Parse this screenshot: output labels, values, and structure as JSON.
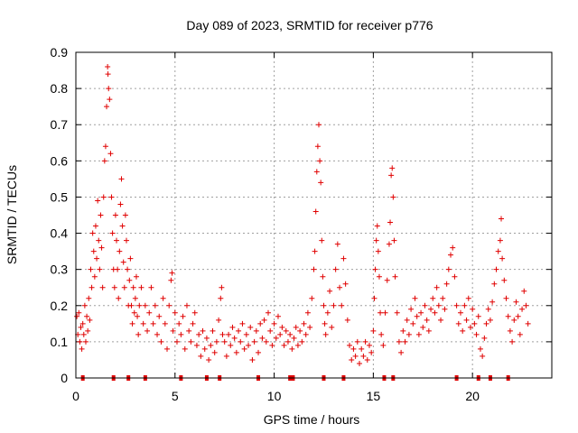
{
  "chart_data": {
    "type": "scatter",
    "title": "Day 089 of 2023, SRMTID for receiver p776",
    "xlabel": "GPS time / hours",
    "ylabel": "SRMTID / TECUs",
    "xlim": [
      0,
      24
    ],
    "ylim": [
      0,
      0.9
    ],
    "x_ticks": [
      "0",
      "5",
      "10",
      "15",
      "20"
    ],
    "y_ticks": [
      "0",
      "0.1",
      "0.2",
      "0.3",
      "0.4",
      "0.5",
      "0.6",
      "0.7",
      "0.8",
      "0.9"
    ],
    "grid": true,
    "marker": "+",
    "color": "#e00000",
    "series": [
      {
        "name": "SRMTID",
        "points": [
          [
            0.05,
            0.17
          ],
          [
            0.1,
            0.12
          ],
          [
            0.15,
            0.18
          ],
          [
            0.2,
            0.1
          ],
          [
            0.25,
            0.14
          ],
          [
            0.3,
            0.08
          ],
          [
            0.35,
            0.15
          ],
          [
            0.4,
            0.12
          ],
          [
            0.45,
            0.2
          ],
          [
            0.5,
            0.1
          ],
          [
            0.55,
            0.17
          ],
          [
            0.6,
            0.13
          ],
          [
            0.65,
            0.22
          ],
          [
            0.7,
            0.16
          ],
          [
            0.75,
            0.3
          ],
          [
            0.8,
            0.25
          ],
          [
            0.85,
            0.4
          ],
          [
            0.9,
            0.35
          ],
          [
            0.95,
            0.28
          ],
          [
            1.0,
            0.42
          ],
          [
            1.05,
            0.33
          ],
          [
            1.1,
            0.49
          ],
          [
            1.15,
            0.38
          ],
          [
            1.2,
            0.3
          ],
          [
            1.25,
            0.45
          ],
          [
            1.3,
            0.36
          ],
          [
            1.35,
            0.25
          ],
          [
            1.4,
            0.5
          ],
          [
            1.45,
            0.6
          ],
          [
            1.5,
            0.64
          ],
          [
            1.55,
            0.75
          ],
          [
            1.6,
            0.86
          ],
          [
            1.62,
            0.84
          ],
          [
            1.65,
            0.8
          ],
          [
            1.7,
            0.77
          ],
          [
            1.75,
            0.62
          ],
          [
            1.8,
            0.5
          ],
          [
            1.85,
            0.4
          ],
          [
            1.9,
            0.3
          ],
          [
            1.95,
            0.25
          ],
          [
            2.0,
            0.45
          ],
          [
            2.05,
            0.38
          ],
          [
            2.1,
            0.3
          ],
          [
            2.15,
            0.22
          ],
          [
            2.2,
            0.35
          ],
          [
            2.25,
            0.48
          ],
          [
            2.3,
            0.55
          ],
          [
            2.35,
            0.42
          ],
          [
            2.4,
            0.32
          ],
          [
            2.45,
            0.25
          ],
          [
            2.5,
            0.45
          ],
          [
            2.55,
            0.38
          ],
          [
            2.6,
            0.3
          ],
          [
            2.65,
            0.2
          ],
          [
            2.7,
            0.27
          ],
          [
            2.75,
            0.33
          ],
          [
            2.8,
            0.2
          ],
          [
            2.85,
            0.15
          ],
          [
            2.9,
            0.25
          ],
          [
            2.95,
            0.18
          ],
          [
            3.0,
            0.22
          ],
          [
            3.05,
            0.28
          ],
          [
            3.1,
            0.17
          ],
          [
            3.15,
            0.12
          ],
          [
            3.2,
            0.2
          ],
          [
            3.3,
            0.25
          ],
          [
            3.4,
            0.15
          ],
          [
            3.5,
            0.2
          ],
          [
            3.6,
            0.13
          ],
          [
            3.7,
            0.18
          ],
          [
            3.8,
            0.25
          ],
          [
            3.9,
            0.15
          ],
          [
            4.0,
            0.2
          ],
          [
            4.1,
            0.12
          ],
          [
            4.2,
            0.17
          ],
          [
            4.3,
            0.1
          ],
          [
            4.4,
            0.22
          ],
          [
            4.5,
            0.15
          ],
          [
            4.6,
            0.08
          ],
          [
            4.7,
            0.2
          ],
          [
            4.8,
            0.27
          ],
          [
            4.85,
            0.29
          ],
          [
            4.9,
            0.13
          ],
          [
            5.0,
            0.18
          ],
          [
            5.1,
            0.1
          ],
          [
            5.2,
            0.15
          ],
          [
            5.3,
            0.12
          ],
          [
            5.4,
            0.17
          ],
          [
            5.5,
            0.08
          ],
          [
            5.6,
            0.2
          ],
          [
            5.7,
            0.13
          ],
          [
            5.8,
            0.1
          ],
          [
            5.9,
            0.15
          ],
          [
            6.0,
            0.18
          ],
          [
            6.1,
            0.09
          ],
          [
            6.2,
            0.12
          ],
          [
            6.3,
            0.06
          ],
          [
            6.4,
            0.13
          ],
          [
            6.5,
            0.08
          ],
          [
            6.6,
            0.11
          ],
          [
            6.7,
            0.05
          ],
          [
            6.8,
            0.09
          ],
          [
            6.9,
            0.13
          ],
          [
            7.0,
            0.07
          ],
          [
            7.1,
            0.1
          ],
          [
            7.2,
            0.16
          ],
          [
            7.3,
            0.22
          ],
          [
            7.35,
            0.25
          ],
          [
            7.4,
            0.12
          ],
          [
            7.5,
            0.1
          ],
          [
            7.6,
            0.06
          ],
          [
            7.7,
            0.12
          ],
          [
            7.8,
            0.09
          ],
          [
            7.9,
            0.14
          ],
          [
            8.0,
            0.11
          ],
          [
            8.1,
            0.07
          ],
          [
            8.2,
            0.13
          ],
          [
            8.3,
            0.1
          ],
          [
            8.4,
            0.15
          ],
          [
            8.5,
            0.08
          ],
          [
            8.6,
            0.12
          ],
          [
            8.7,
            0.09
          ],
          [
            8.8,
            0.14
          ],
          [
            8.9,
            0.05
          ],
          [
            9.0,
            0.1
          ],
          [
            9.1,
            0.13
          ],
          [
            9.2,
            0.07
          ],
          [
            9.3,
            0.15
          ],
          [
            9.4,
            0.11
          ],
          [
            9.5,
            0.16
          ],
          [
            9.6,
            0.1
          ],
          [
            9.7,
            0.18
          ],
          [
            9.8,
            0.13
          ],
          [
            9.9,
            0.09
          ],
          [
            10.0,
            0.15
          ],
          [
            10.1,
            0.11
          ],
          [
            10.2,
            0.17
          ],
          [
            10.3,
            0.12
          ],
          [
            10.4,
            0.14
          ],
          [
            10.5,
            0.09
          ],
          [
            10.6,
            0.13
          ],
          [
            10.7,
            0.1
          ],
          [
            10.8,
            0.12
          ],
          [
            10.9,
            0.08
          ],
          [
            11.0,
            0.11
          ],
          [
            11.1,
            0.14
          ],
          [
            11.2,
            0.09
          ],
          [
            11.3,
            0.13
          ],
          [
            11.4,
            0.1
          ],
          [
            11.5,
            0.15
          ],
          [
            11.6,
            0.12
          ],
          [
            11.7,
            0.18
          ],
          [
            11.8,
            0.14
          ],
          [
            11.9,
            0.22
          ],
          [
            12.0,
            0.3
          ],
          [
            12.05,
            0.35
          ],
          [
            12.1,
            0.46
          ],
          [
            12.15,
            0.57
          ],
          [
            12.2,
            0.64
          ],
          [
            12.25,
            0.7
          ],
          [
            12.3,
            0.6
          ],
          [
            12.35,
            0.54
          ],
          [
            12.4,
            0.38
          ],
          [
            12.45,
            0.28
          ],
          [
            12.5,
            0.2
          ],
          [
            12.55,
            0.15
          ],
          [
            12.6,
            0.12
          ],
          [
            12.7,
            0.18
          ],
          [
            12.8,
            0.24
          ],
          [
            12.9,
            0.14
          ],
          [
            13.0,
            0.2
          ],
          [
            13.1,
            0.3
          ],
          [
            13.2,
            0.37
          ],
          [
            13.3,
            0.25
          ],
          [
            13.4,
            0.2
          ],
          [
            13.5,
            0.33
          ],
          [
            13.6,
            0.26
          ],
          [
            13.7,
            0.16
          ],
          [
            13.8,
            0.09
          ],
          [
            13.9,
            0.05
          ],
          [
            14.0,
            0.08
          ],
          [
            14.1,
            0.06
          ],
          [
            14.2,
            0.1
          ],
          [
            14.3,
            0.04
          ],
          [
            14.4,
            0.08
          ],
          [
            14.5,
            0.06
          ],
          [
            14.6,
            0.1
          ],
          [
            14.7,
            0.05
          ],
          [
            14.8,
            0.09
          ],
          [
            14.9,
            0.07
          ],
          [
            15.0,
            0.13
          ],
          [
            15.05,
            0.22
          ],
          [
            15.1,
            0.3
          ],
          [
            15.15,
            0.38
          ],
          [
            15.2,
            0.42
          ],
          [
            15.25,
            0.35
          ],
          [
            15.3,
            0.28
          ],
          [
            15.35,
            0.18
          ],
          [
            15.4,
            0.12
          ],
          [
            15.5,
            0.09
          ],
          [
            15.6,
            0.18
          ],
          [
            15.7,
            0.27
          ],
          [
            15.8,
            0.37
          ],
          [
            15.85,
            0.43
          ],
          [
            15.9,
            0.56
          ],
          [
            15.95,
            0.58
          ],
          [
            16.0,
            0.5
          ],
          [
            16.05,
            0.38
          ],
          [
            16.1,
            0.28
          ],
          [
            16.2,
            0.18
          ],
          [
            16.3,
            0.1
          ],
          [
            16.4,
            0.07
          ],
          [
            16.5,
            0.13
          ],
          [
            16.6,
            0.1
          ],
          [
            16.7,
            0.16
          ],
          [
            16.8,
            0.12
          ],
          [
            16.9,
            0.19
          ],
          [
            17.0,
            0.15
          ],
          [
            17.1,
            0.22
          ],
          [
            17.2,
            0.17
          ],
          [
            17.3,
            0.12
          ],
          [
            17.4,
            0.18
          ],
          [
            17.5,
            0.14
          ],
          [
            17.6,
            0.2
          ],
          [
            17.7,
            0.16
          ],
          [
            17.8,
            0.13
          ],
          [
            17.9,
            0.19
          ],
          [
            18.0,
            0.22
          ],
          [
            18.1,
            0.18
          ],
          [
            18.2,
            0.25
          ],
          [
            18.3,
            0.2
          ],
          [
            18.4,
            0.16
          ],
          [
            18.5,
            0.22
          ],
          [
            18.6,
            0.19
          ],
          [
            18.7,
            0.26
          ],
          [
            18.8,
            0.3
          ],
          [
            18.9,
            0.34
          ],
          [
            19.0,
            0.36
          ],
          [
            19.1,
            0.28
          ],
          [
            19.2,
            0.2
          ],
          [
            19.3,
            0.15
          ],
          [
            19.4,
            0.18
          ],
          [
            19.5,
            0.13
          ],
          [
            19.6,
            0.2
          ],
          [
            19.7,
            0.16
          ],
          [
            19.8,
            0.22
          ],
          [
            19.9,
            0.14
          ],
          [
            20.0,
            0.19
          ],
          [
            20.1,
            0.15
          ],
          [
            20.2,
            0.12
          ],
          [
            20.3,
            0.17
          ],
          [
            20.4,
            0.08
          ],
          [
            20.5,
            0.06
          ],
          [
            20.6,
            0.11
          ],
          [
            20.7,
            0.15
          ],
          [
            20.8,
            0.19
          ],
          [
            20.9,
            0.16
          ],
          [
            21.0,
            0.21
          ],
          [
            21.1,
            0.26
          ],
          [
            21.2,
            0.3
          ],
          [
            21.3,
            0.35
          ],
          [
            21.4,
            0.38
          ],
          [
            21.45,
            0.44
          ],
          [
            21.5,
            0.33
          ],
          [
            21.6,
            0.27
          ],
          [
            21.7,
            0.22
          ],
          [
            21.8,
            0.17
          ],
          [
            21.9,
            0.13
          ],
          [
            22.0,
            0.1
          ],
          [
            22.1,
            0.16
          ],
          [
            22.2,
            0.21
          ],
          [
            22.3,
            0.17
          ],
          [
            22.4,
            0.12
          ],
          [
            22.5,
            0.19
          ],
          [
            22.6,
            0.24
          ],
          [
            22.7,
            0.2
          ],
          [
            22.8,
            0.15
          ]
        ]
      }
    ],
    "rug_x": [
      0.35,
      1.9,
      2.65,
      3.5,
      5.3,
      6.6,
      7.25,
      9.2,
      10.8,
      10.95,
      12.5,
      13.5,
      15.55,
      16.0,
      19.2,
      20.3,
      20.9,
      21.8
    ]
  }
}
